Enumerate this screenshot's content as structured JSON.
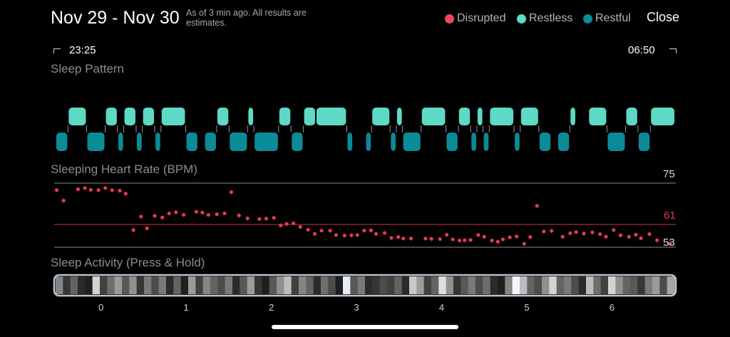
{
  "header": {
    "title": "Nov 29 - Nov 30",
    "subtitle": "As of 3 min ago. All results are estimates.",
    "close_label": "Close"
  },
  "legend": [
    {
      "label": "Disrupted",
      "color": "#f0485a"
    },
    {
      "label": "Restless",
      "color": "#5dd9c6"
    },
    {
      "label": "Restful",
      "color": "#0b8a98"
    }
  ],
  "time_range": {
    "start": "23:25",
    "end": "06:50"
  },
  "sleep_pattern": {
    "label": "Sleep Pattern",
    "segments": [
      {
        "state": "restful",
        "start": 0.0,
        "end": 0.02
      },
      {
        "state": "restless",
        "start": 0.02,
        "end": 0.05
      },
      {
        "state": "restful",
        "start": 0.05,
        "end": 0.08
      },
      {
        "state": "restless",
        "start": 0.08,
        "end": 0.1
      },
      {
        "state": "restful",
        "start": 0.1,
        "end": 0.11
      },
      {
        "state": "restless",
        "start": 0.11,
        "end": 0.13
      },
      {
        "state": "restful",
        "start": 0.13,
        "end": 0.14
      },
      {
        "state": "restless",
        "start": 0.14,
        "end": 0.16
      },
      {
        "state": "restful",
        "start": 0.16,
        "end": 0.17
      },
      {
        "state": "restless",
        "start": 0.17,
        "end": 0.21
      },
      {
        "state": "restful",
        "start": 0.21,
        "end": 0.23
      },
      {
        "state": "restful",
        "start": 0.24,
        "end": 0.26
      },
      {
        "state": "restless",
        "start": 0.26,
        "end": 0.28
      },
      {
        "state": "restful",
        "start": 0.28,
        "end": 0.31
      },
      {
        "state": "restless",
        "start": 0.31,
        "end": 0.32
      },
      {
        "state": "restful",
        "start": 0.32,
        "end": 0.36
      },
      {
        "state": "restless",
        "start": 0.36,
        "end": 0.38
      },
      {
        "state": "restful",
        "start": 0.38,
        "end": 0.4
      },
      {
        "state": "restless",
        "start": 0.4,
        "end": 0.42
      },
      {
        "state": "restless",
        "start": 0.42,
        "end": 0.47
      },
      {
        "state": "restful",
        "start": 0.47,
        "end": 0.48
      },
      {
        "state": "restful",
        "start": 0.5,
        "end": 0.51
      },
      {
        "state": "restless",
        "start": 0.51,
        "end": 0.54
      },
      {
        "state": "restful",
        "start": 0.54,
        "end": 0.55
      },
      {
        "state": "restless",
        "start": 0.55,
        "end": 0.56
      },
      {
        "state": "restful",
        "start": 0.56,
        "end": 0.59
      },
      {
        "state": "restless",
        "start": 0.59,
        "end": 0.63
      },
      {
        "state": "restful",
        "start": 0.63,
        "end": 0.65
      },
      {
        "state": "restless",
        "start": 0.65,
        "end": 0.67
      },
      {
        "state": "restful",
        "start": 0.67,
        "end": 0.68
      },
      {
        "state": "restless",
        "start": 0.68,
        "end": 0.69
      },
      {
        "state": "restful",
        "start": 0.69,
        "end": 0.7
      },
      {
        "state": "restless",
        "start": 0.7,
        "end": 0.74
      },
      {
        "state": "restful",
        "start": 0.74,
        "end": 0.75
      },
      {
        "state": "restless",
        "start": 0.75,
        "end": 0.78
      },
      {
        "state": "restful",
        "start": 0.78,
        "end": 0.8
      },
      {
        "state": "restful",
        "start": 0.81,
        "end": 0.83
      },
      {
        "state": "restless",
        "start": 0.83,
        "end": 0.84
      },
      {
        "state": "restless",
        "start": 0.86,
        "end": 0.89
      },
      {
        "state": "restful",
        "start": 0.89,
        "end": 0.92
      },
      {
        "state": "restless",
        "start": 0.92,
        "end": 0.94
      },
      {
        "state": "restful",
        "start": 0.94,
        "end": 0.96
      },
      {
        "state": "restless",
        "start": 0.96,
        "end": 1.0
      }
    ]
  },
  "heart_rate": {
    "label": "Sleeping Heart Rate (BPM)",
    "max": "75",
    "avg": "61",
    "min": "53"
  },
  "sleep_activity": {
    "label": "Sleep Activity (Press & Hold)",
    "x_ticks": [
      "0",
      "1",
      "2",
      "3",
      "4",
      "5",
      "6"
    ]
  },
  "chart_data": {
    "type": "scatter",
    "title": "Sleeping Heart Rate (BPM)",
    "xlabel": "",
    "ylabel": "",
    "ylim": [
      53,
      75
    ],
    "reference_lines": [
      75,
      61,
      53
    ],
    "x_ticks": [
      0,
      1,
      2,
      3,
      4,
      5,
      6
    ],
    "xlim": [
      -0.55,
      6.75
    ],
    "x": [
      -0.52,
      -0.44,
      -0.27,
      -0.19,
      -0.12,
      -0.03,
      0.05,
      0.13,
      0.22,
      0.29,
      0.38,
      0.47,
      0.54,
      0.63,
      0.72,
      0.8,
      0.88,
      0.97,
      1.12,
      1.19,
      1.26,
      1.36,
      1.45,
      1.53,
      1.62,
      1.72,
      1.86,
      1.94,
      2.03,
      2.11,
      2.18,
      2.26,
      2.34,
      2.43,
      2.51,
      2.59,
      2.69,
      2.76,
      2.86,
      2.94,
      3.01,
      3.09,
      3.17,
      3.23,
      3.33,
      3.41,
      3.49,
      3.55,
      3.64,
      3.81,
      3.88,
      3.98,
      4.06,
      4.13,
      4.21,
      4.27,
      4.34,
      4.43,
      4.5,
      4.59,
      4.66,
      4.72,
      4.8,
      4.88,
      4.97,
      5.04,
      5.12,
      5.2,
      5.29,
      5.42,
      5.51,
      5.58,
      5.67,
      5.77,
      5.86,
      5.93,
      6.02,
      6.1,
      6.2,
      6.28,
      6.34,
      6.44,
      6.53,
      6.68
    ],
    "y": [
      72.6,
      69.0,
      72.9,
      73.3,
      72.7,
      72.6,
      73.3,
      72.6,
      72.4,
      71.4,
      58.9,
      63.5,
      59.5,
      63.8,
      63.2,
      64.6,
      65.0,
      64.1,
      65.2,
      64.9,
      64.1,
      64.3,
      64.6,
      71.9,
      63.9,
      62.9,
      62.7,
      62.8,
      63.1,
      60.5,
      61.0,
      61.2,
      60.0,
      59.0,
      57.6,
      58.7,
      58.7,
      57.2,
      57.0,
      57.1,
      57.2,
      58.7,
      58.8,
      57.6,
      57.9,
      56.2,
      56.5,
      56.0,
      56.0,
      56.0,
      55.9,
      55.8,
      57.3,
      55.7,
      55.3,
      55.4,
      55.5,
      57.2,
      56.6,
      55.3,
      54.9,
      55.7,
      56.4,
      56.7,
      54.2,
      56.5,
      67.2,
      58.4,
      58.6,
      56.6,
      57.8,
      58.2,
      57.7,
      58.1,
      57.5,
      56.6,
      58.9,
      57.1,
      56.6,
      57.3,
      56.1,
      57.5,
      55.4,
      54.2
    ]
  },
  "activity_chart": {
    "type": "heatmap",
    "title": "Sleep Activity (Press & Hold)",
    "values": [
      0.5,
      0.15,
      0.35,
      0.1,
      0.05,
      0.85,
      0.2,
      0.4,
      0.6,
      0.3,
      0.55,
      0.15,
      0.45,
      0.25,
      0.45,
      0.1,
      0.35,
      0.05,
      0.6,
      0.2,
      0.5,
      0.35,
      0.25,
      0.45,
      0.1,
      0.3,
      0.6,
      0.15,
      0.05,
      0.3,
      0.55,
      0.75,
      0.2,
      0.5,
      0.35,
      0.1,
      0.4,
      0.25,
      0.05,
      0.95,
      0.3,
      0.45,
      0.1,
      0.15,
      0.25,
      0.2,
      0.35,
      0.1,
      0.8,
      0.6,
      0.2,
      0.35,
      0.9,
      0.55,
      0.15,
      0.3,
      0.45,
      0.25,
      0.4,
      0.1,
      0.05,
      0.5,
      1.0,
      0.75,
      0.35,
      0.25,
      0.55,
      0.85,
      0.35,
      0.45,
      0.25,
      0.1,
      0.75,
      0.4,
      0.2,
      0.85,
      0.55,
      0.35,
      0.3,
      0.15,
      0.45,
      0.6,
      0.25,
      0.65
    ]
  }
}
